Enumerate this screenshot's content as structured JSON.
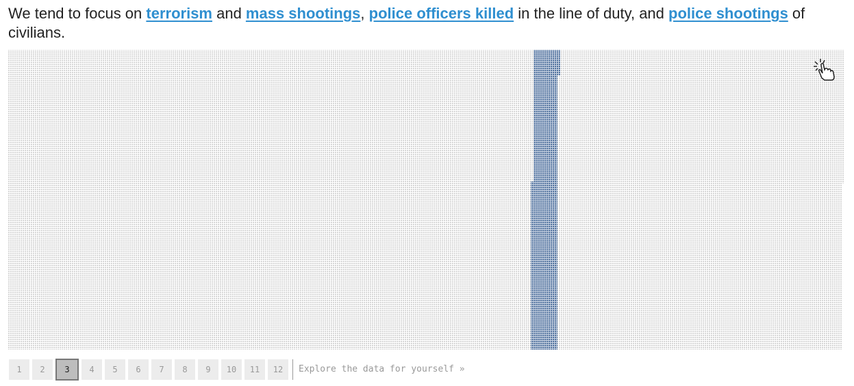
{
  "intro": {
    "segments": [
      {
        "text": "We tend to focus on ",
        "link": false
      },
      {
        "text": "terrorism",
        "link": true
      },
      {
        "text": " and ",
        "link": false
      },
      {
        "text": "mass shootings",
        "link": true
      },
      {
        "text": ", ",
        "link": false
      },
      {
        "text": "police officers killed",
        "link": true
      },
      {
        "text": " in the line of duty, and ",
        "link": false
      },
      {
        "text": "police shootings",
        "link": true
      },
      {
        "text": " of civilians.",
        "link": false
      }
    ]
  },
  "pagination": {
    "pages": [
      1,
      2,
      3,
      4,
      5,
      6,
      7,
      8,
      9,
      10,
      11,
      12
    ],
    "current": 3,
    "explore": "Explore the data for yourself »"
  }
}
